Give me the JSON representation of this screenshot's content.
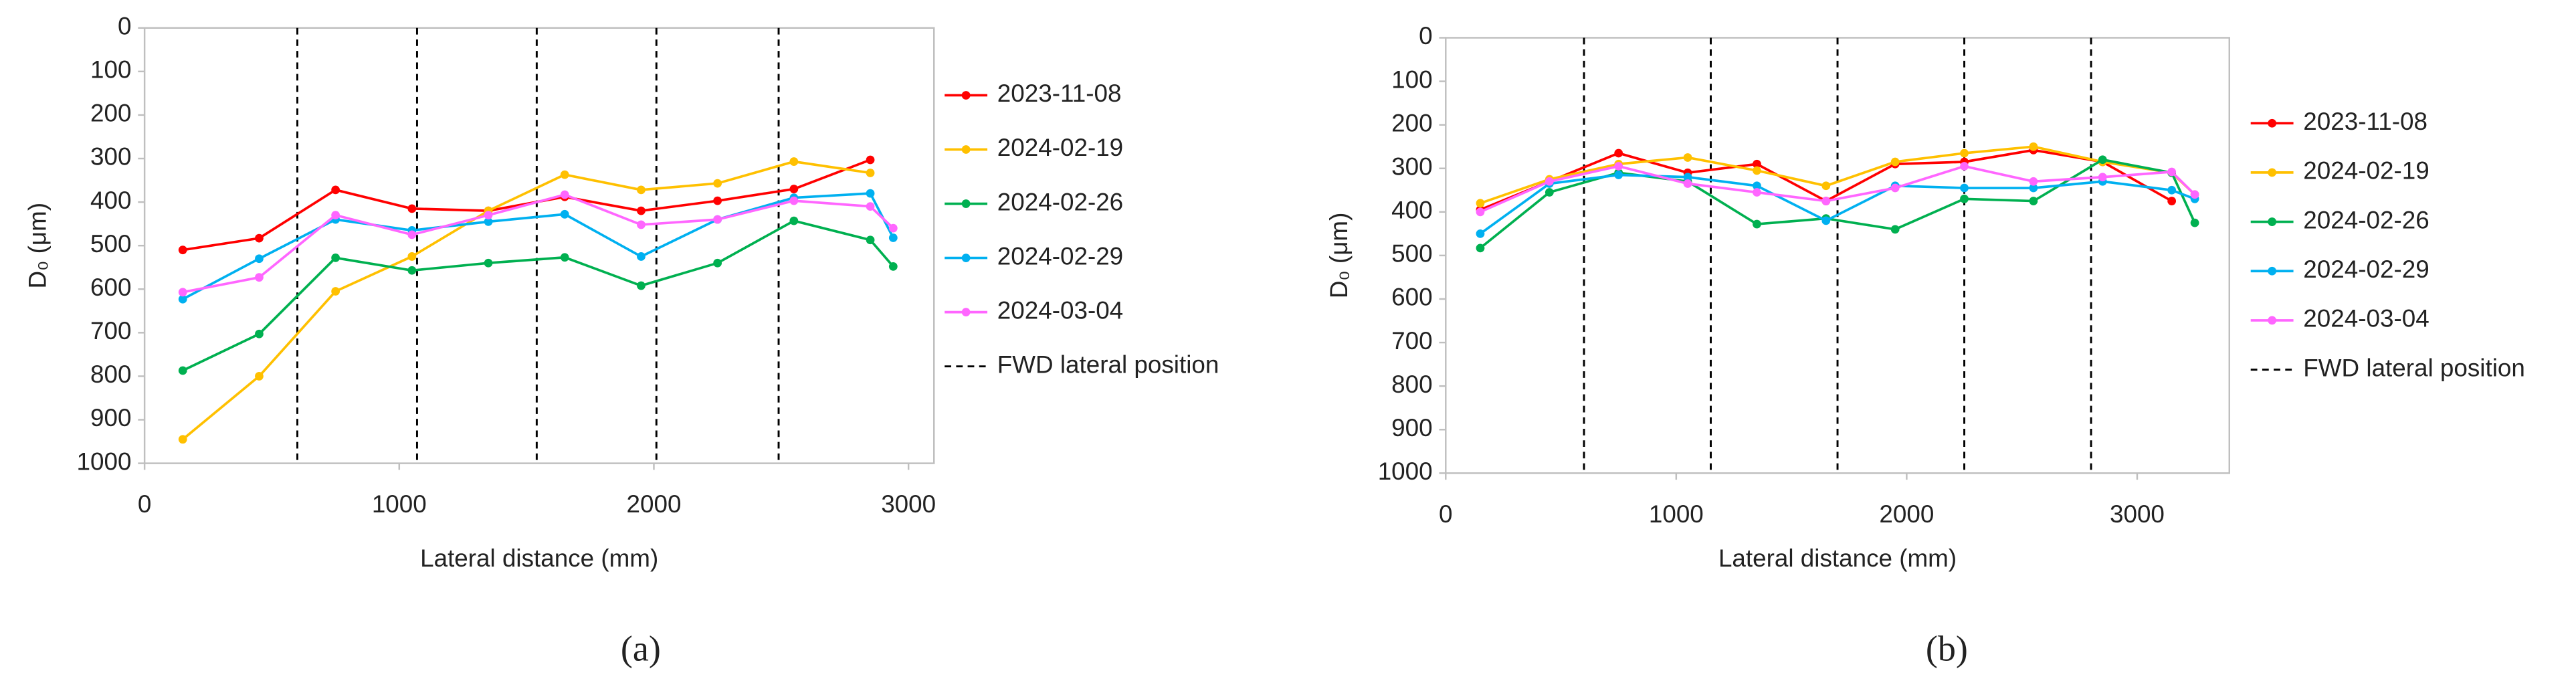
{
  "chart_data": [
    {
      "type": "line",
      "label": "(a)",
      "x_label": "Lateral distance (mm)",
      "y_label": "D₀ (μm)",
      "xlim": [
        0,
        3100
      ],
      "xticks": [
        0,
        1000,
        2000,
        3000
      ],
      "ylim": [
        0,
        1000
      ],
      "yticks": [
        0,
        100,
        200,
        300,
        400,
        500,
        600,
        700,
        800,
        900,
        1000
      ],
      "y_inverted": true,
      "x": [
        150,
        450,
        750,
        1050,
        1350,
        1650,
        1950,
        2250,
        2550,
        2850,
        2940
      ],
      "series": [
        {
          "name": "2023-11-08",
          "color": "#ff0000",
          "values": [
            510,
            483,
            372,
            415,
            420,
            388,
            420,
            397,
            370,
            303,
            null
          ]
        },
        {
          "name": "2024-02-19",
          "color": "#ffc000",
          "values": [
            945,
            800,
            605,
            525,
            420,
            337,
            372,
            357,
            307,
            333,
            null
          ]
        },
        {
          "name": "2024-02-26",
          "color": "#00b050",
          "values": [
            787,
            703,
            528,
            557,
            540,
            527,
            592,
            540,
            443,
            487,
            548
          ]
        },
        {
          "name": "2024-02-29",
          "color": "#00b0f0",
          "values": [
            623,
            530,
            440,
            465,
            445,
            428,
            525,
            440,
            390,
            380,
            482
          ]
        },
        {
          "name": "2024-03-04",
          "color": "#ff66ff",
          "values": [
            607,
            573,
            430,
            475,
            430,
            383,
            452,
            440,
            397,
            410,
            460
          ]
        }
      ],
      "vlines": {
        "name": "FWD lateral position",
        "x": [
          600,
          1070,
          1540,
          2010,
          2490
        ]
      }
    },
    {
      "type": "line",
      "label": "(b)",
      "x_label": "Lateral distance (mm)",
      "y_label": "D₀ (μm)",
      "xlim": [
        0,
        3400
      ],
      "xticks": [
        0,
        1000,
        2000,
        3000
      ],
      "ylim": [
        0,
        1000
      ],
      "yticks": [
        0,
        100,
        200,
        300,
        400,
        500,
        600,
        700,
        800,
        900,
        1000
      ],
      "y_inverted": true,
      "x": [
        150,
        450,
        750,
        1050,
        1350,
        1650,
        1950,
        2250,
        2550,
        2850,
        3150,
        3250
      ],
      "series": [
        {
          "name": "2023-11-08",
          "color": "#ff0000",
          "values": [
            395,
            330,
            265,
            310,
            290,
            375,
            290,
            285,
            258,
            285,
            375,
            null
          ]
        },
        {
          "name": "2024-02-19",
          "color": "#ffc000",
          "values": [
            380,
            325,
            290,
            275,
            305,
            340,
            285,
            265,
            250,
            285,
            310,
            360
          ]
        },
        {
          "name": "2024-02-26",
          "color": "#00b050",
          "values": [
            483,
            355,
            310,
            330,
            428,
            415,
            440,
            370,
            375,
            280,
            310,
            425
          ]
        },
        {
          "name": "2024-02-29",
          "color": "#00b0f0",
          "values": [
            450,
            335,
            315,
            320,
            340,
            420,
            340,
            345,
            345,
            330,
            350,
            370
          ]
        },
        {
          "name": "2024-03-04",
          "color": "#ff66ff",
          "values": [
            400,
            330,
            295,
            335,
            355,
            375,
            345,
            295,
            330,
            320,
            308,
            360
          ]
        }
      ],
      "vlines": {
        "name": "FWD lateral position",
        "x": [
          600,
          1150,
          1700,
          2250,
          2800
        ]
      }
    }
  ]
}
